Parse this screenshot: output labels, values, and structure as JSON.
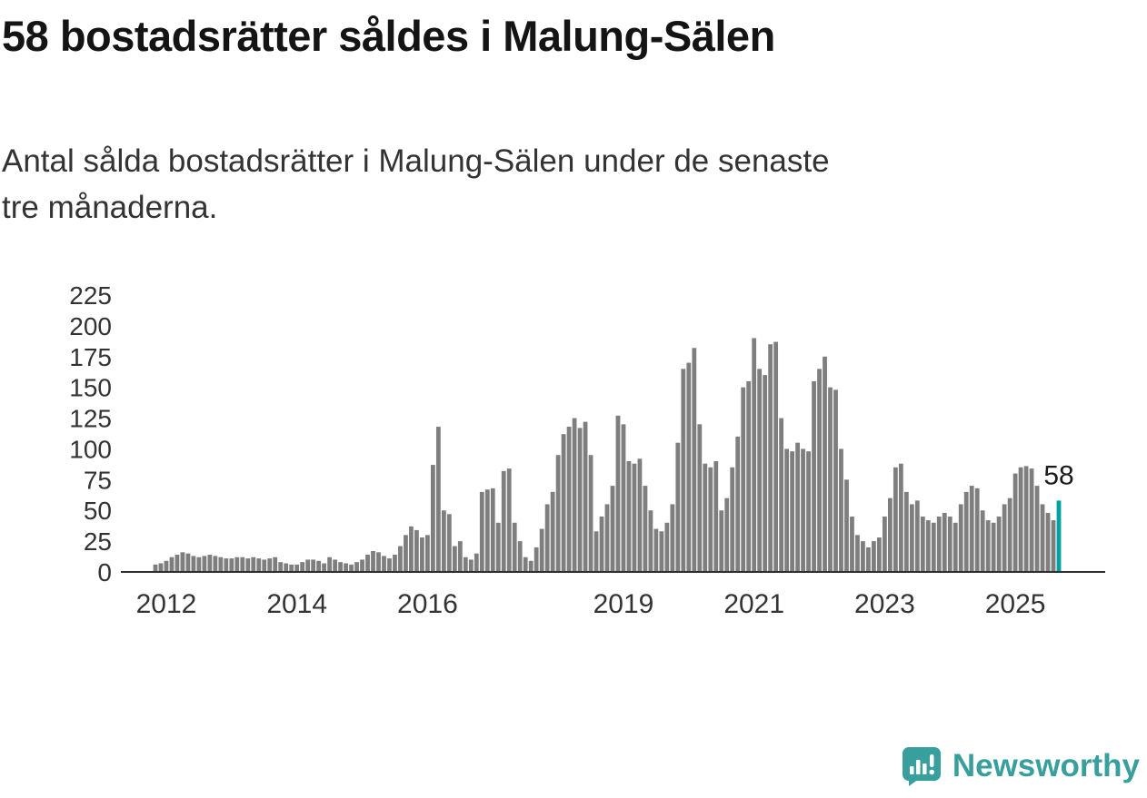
{
  "header": {
    "title": "58 bostadsrätter såldes i Malung-Sälen",
    "subtitle": "Antal sålda bostadsrätter i Malung-Sälen under de senaste tre månaderna.",
    "subtitle_lines": [
      "Antal sålda bostadsrätter i Malung-Sälen under de senaste",
      "tre månaderna."
    ]
  },
  "chart_data": {
    "type": "bar",
    "title": "58 bostadsrätter såldes i Malung-Sälen",
    "subtitle": "Antal sålda bostadsrätter i Malung-Sälen under de senaste tre månaderna.",
    "xlabel": "",
    "ylabel": "",
    "frequency": "monthly",
    "start": {
      "year": 2011,
      "month": 11
    },
    "values": [
      6,
      7,
      9,
      12,
      14,
      16,
      15,
      13,
      12,
      13,
      14,
      13,
      12,
      11,
      11,
      12,
      12,
      11,
      12,
      11,
      10,
      11,
      12,
      8,
      7,
      6,
      6,
      8,
      10,
      10,
      9,
      7,
      12,
      10,
      8,
      7,
      6,
      8,
      10,
      14,
      17,
      16,
      13,
      11,
      14,
      21,
      30,
      37,
      34,
      28,
      30,
      87,
      118,
      50,
      47,
      21,
      25,
      12,
      10,
      15,
      65,
      67,
      68,
      40,
      82,
      84,
      40,
      25,
      12,
      9,
      20,
      35,
      55,
      65,
      95,
      112,
      118,
      125,
      117,
      122,
      95,
      33,
      45,
      55,
      70,
      127,
      120,
      90,
      88,
      92,
      70,
      50,
      35,
      33,
      40,
      55,
      105,
      165,
      170,
      182,
      120,
      88,
      85,
      90,
      50,
      60,
      85,
      110,
      150,
      155,
      190,
      165,
      160,
      185,
      187,
      125,
      100,
      98,
      105,
      100,
      98,
      155,
      165,
      175,
      150,
      148,
      100,
      75,
      45,
      30,
      25,
      20,
      25,
      28,
      45,
      60,
      85,
      88,
      65,
      55,
      58,
      45,
      42,
      40,
      45,
      48,
      45,
      40,
      55,
      65,
      70,
      68,
      50,
      42,
      40,
      45,
      55,
      60,
      80,
      85,
      86,
      84,
      70,
      55,
      48,
      42,
      58
    ],
    "ylim": [
      0,
      225
    ],
    "yticks": [
      0,
      25,
      50,
      75,
      100,
      125,
      150,
      175,
      200,
      225
    ],
    "xticks": [
      2012,
      2014,
      2016,
      2019,
      2021,
      2023,
      2025
    ],
    "grid": false,
    "legend": "none",
    "bar_color": "#7e7e7e",
    "highlight_color": "#00a2a2",
    "highlight_index": "last",
    "end_label": "58",
    "axis_color": "#2f2f2f"
  },
  "branding": {
    "name": "Newsworthy",
    "color": "#399f9d",
    "logo": "newsworthy-logo"
  }
}
